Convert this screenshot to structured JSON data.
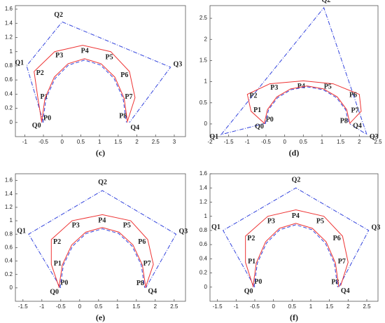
{
  "chart_data": [
    {
      "type": "line",
      "caption": "(c)",
      "xlim": [
        -1.25,
        3.3
      ],
      "ylim": [
        -0.2,
        1.65
      ],
      "xticks": [
        -1,
        -0.5,
        0,
        0.5,
        1,
        1.5,
        2,
        2.5,
        3
      ],
      "yticks": [
        0,
        0.2,
        0.4,
        0.6,
        0.8,
        1,
        1.2,
        1.4,
        1.6
      ],
      "series": [
        {
          "color": "#3344dd",
          "dash": "dashdot",
          "x": [
            -0.5,
            -0.95,
            0,
            2.9,
            1.8
          ],
          "values": [
            0,
            0.8,
            1.42,
            0.78,
            0
          ],
          "labels": [
            "Q0",
            "Q1",
            "Q2",
            "Q3",
            "Q4"
          ]
        },
        {
          "color": "#ee3333",
          "dash": "solid",
          "x": [
            -0.55,
            -0.65,
            -0.75,
            -0.2,
            0.55,
            1.3,
            1.8,
            1.95,
            1.75
          ],
          "values": [
            0.02,
            0.35,
            0.72,
            1.0,
            1.09,
            1.0,
            0.72,
            0.35,
            0.02
          ],
          "labels": [
            "P0",
            "P1",
            "P2",
            "P3",
            "P4",
            "P5",
            "P6",
            "P7",
            "P8"
          ]
        },
        {
          "color": "#3344dd",
          "dash": "dashed",
          "x": [
            -0.52,
            -0.43,
            -0.19,
            0.17,
            0.6,
            1.03,
            1.39,
            1.63,
            1.72
          ],
          "values": [
            0,
            0.34,
            0.62,
            0.81,
            0.88,
            0.81,
            0.62,
            0.34,
            0
          ]
        },
        {
          "color": "#ee3333",
          "dash": "solid",
          "x": [
            -0.55,
            -0.46,
            -0.21,
            0.16,
            0.6,
            1.04,
            1.41,
            1.66,
            1.75
          ],
          "values": [
            0,
            0.34,
            0.64,
            0.83,
            0.9,
            0.83,
            0.64,
            0.34,
            0
          ]
        }
      ]
    },
    {
      "type": "line",
      "caption": "(d)",
      "xlim": [
        -2,
        2.5
      ],
      "ylim": [
        -0.3,
        2.8
      ],
      "xticks": [
        -2,
        -1.5,
        -1,
        -0.5,
        0,
        0.5,
        1,
        1.5,
        2,
        2.5
      ],
      "yticks": [
        0,
        0.5,
        1,
        1.5,
        2,
        2.5
      ],
      "series": [
        {
          "color": "#3344dd",
          "dash": "dashdot",
          "x": [
            -0.5,
            -1.7,
            1.05,
            2.2,
            1.75
          ],
          "values": [
            0.02,
            -0.25,
            2.75,
            -0.25,
            0
          ],
          "labels": [
            "Q0",
            "Q1",
            "Q2",
            "Q3",
            "Q4"
          ]
        },
        {
          "color": "#ee3333",
          "dash": "solid",
          "x": [
            -0.55,
            -0.9,
            -1.0,
            -0.4,
            0.5,
            1.3,
            2.0,
            2.05,
            1.75
          ],
          "values": [
            0.02,
            0.3,
            0.7,
            0.95,
            1.02,
            0.95,
            0.7,
            0.3,
            0.02
          ],
          "labels": [
            "P0",
            "P1",
            "P2",
            "P3",
            "P4",
            "P5",
            "P6",
            "P7",
            "P8"
          ]
        },
        {
          "color": "#3344dd",
          "dash": "dashed",
          "x": [
            -0.52,
            -0.43,
            -0.19,
            0.17,
            0.6,
            1.03,
            1.39,
            1.63,
            1.72
          ],
          "values": [
            0,
            0.34,
            0.62,
            0.81,
            0.88,
            0.81,
            0.62,
            0.34,
            0
          ]
        },
        {
          "color": "#ee3333",
          "dash": "solid",
          "x": [
            -0.55,
            -0.46,
            -0.21,
            0.16,
            0.6,
            1.04,
            1.41,
            1.66,
            1.75
          ],
          "values": [
            0,
            0.34,
            0.64,
            0.83,
            0.9,
            0.83,
            0.64,
            0.34,
            0
          ]
        }
      ]
    },
    {
      "type": "line",
      "caption": "(e)",
      "xlim": [
        -1.7,
        2.8
      ],
      "ylim": [
        -0.2,
        1.7
      ],
      "xticks": [
        -1.5,
        -1,
        -0.5,
        0,
        0.5,
        1,
        1.5,
        2,
        2.5
      ],
      "yticks": [
        0,
        0.2,
        0.4,
        0.6,
        0.8,
        1,
        1.2,
        1.4,
        1.6
      ],
      "series": [
        {
          "color": "#3344dd",
          "dash": "dashdot",
          "x": [
            -0.5,
            -1.35,
            0.6,
            2.55,
            1.75
          ],
          "values": [
            0,
            0.8,
            1.45,
            0.8,
            0
          ],
          "labels": [
            "Q0",
            "Q1",
            "Q2",
            "Q3",
            "Q4"
          ]
        },
        {
          "color": "#ee3333",
          "dash": "solid",
          "x": [
            -0.55,
            -0.75,
            -0.75,
            -0.2,
            0.6,
            1.35,
            1.8,
            1.95,
            1.75
          ],
          "values": [
            0.02,
            0.35,
            0.72,
            1.0,
            1.09,
            1.0,
            0.72,
            0.35,
            0.02
          ],
          "labels": [
            "P0",
            "P1",
            "P2",
            "P3",
            "P4",
            "P5",
            "P6",
            "P7",
            "P8"
          ]
        },
        {
          "color": "#3344dd",
          "dash": "dashed",
          "x": [
            -0.52,
            -0.43,
            -0.19,
            0.17,
            0.6,
            1.03,
            1.39,
            1.63,
            1.72
          ],
          "values": [
            0,
            0.34,
            0.62,
            0.81,
            0.88,
            0.81,
            0.62,
            0.34,
            0
          ]
        },
        {
          "color": "#ee3333",
          "dash": "solid",
          "x": [
            -0.55,
            -0.46,
            -0.21,
            0.16,
            0.6,
            1.04,
            1.41,
            1.66,
            1.75
          ],
          "values": [
            0,
            0.34,
            0.64,
            0.83,
            0.9,
            0.83,
            0.64,
            0.34,
            0
          ]
        }
      ]
    },
    {
      "type": "line",
      "caption": "(f)",
      "xlim": [
        -1.7,
        2.8
      ],
      "ylim": [
        -0.2,
        1.6
      ],
      "xticks": [
        -1.5,
        -1,
        -0.5,
        0,
        0.5,
        1,
        1.5,
        2,
        2.5
      ],
      "yticks": [
        0,
        0.2,
        0.4,
        0.6,
        0.8,
        1,
        1.2,
        1.4,
        1.6
      ],
      "series": [
        {
          "color": "#3344dd",
          "dash": "dashdot",
          "x": [
            -0.5,
            -1.35,
            0.6,
            2.55,
            1.75
          ],
          "values": [
            0,
            0.8,
            1.4,
            0.8,
            0
          ],
          "labels": [
            "Q0",
            "Q1",
            "Q2",
            "Q3",
            "Q4"
          ]
        },
        {
          "color": "#ee3333",
          "dash": "solid",
          "x": [
            -0.55,
            -0.75,
            -0.75,
            -0.15,
            0.6,
            1.35,
            1.85,
            2.0,
            1.8
          ],
          "values": [
            0.02,
            0.35,
            0.72,
            1.0,
            1.09,
            1.0,
            0.72,
            0.35,
            0.02
          ],
          "labels": [
            "P0",
            "P1",
            "P2",
            "P3",
            "P4",
            "P5",
            "P6",
            "P7",
            "P8"
          ]
        },
        {
          "color": "#3344dd",
          "dash": "dashed",
          "x": [
            -0.52,
            -0.43,
            -0.19,
            0.17,
            0.6,
            1.03,
            1.39,
            1.63,
            1.72
          ],
          "values": [
            0,
            0.34,
            0.62,
            0.81,
            0.88,
            0.81,
            0.62,
            0.34,
            0
          ]
        },
        {
          "color": "#ee3333",
          "dash": "solid",
          "x": [
            -0.55,
            -0.46,
            -0.21,
            0.16,
            0.6,
            1.04,
            1.41,
            1.66,
            1.75
          ],
          "values": [
            0,
            0.34,
            0.64,
            0.83,
            0.9,
            0.83,
            0.64,
            0.34,
            0
          ]
        }
      ]
    }
  ]
}
